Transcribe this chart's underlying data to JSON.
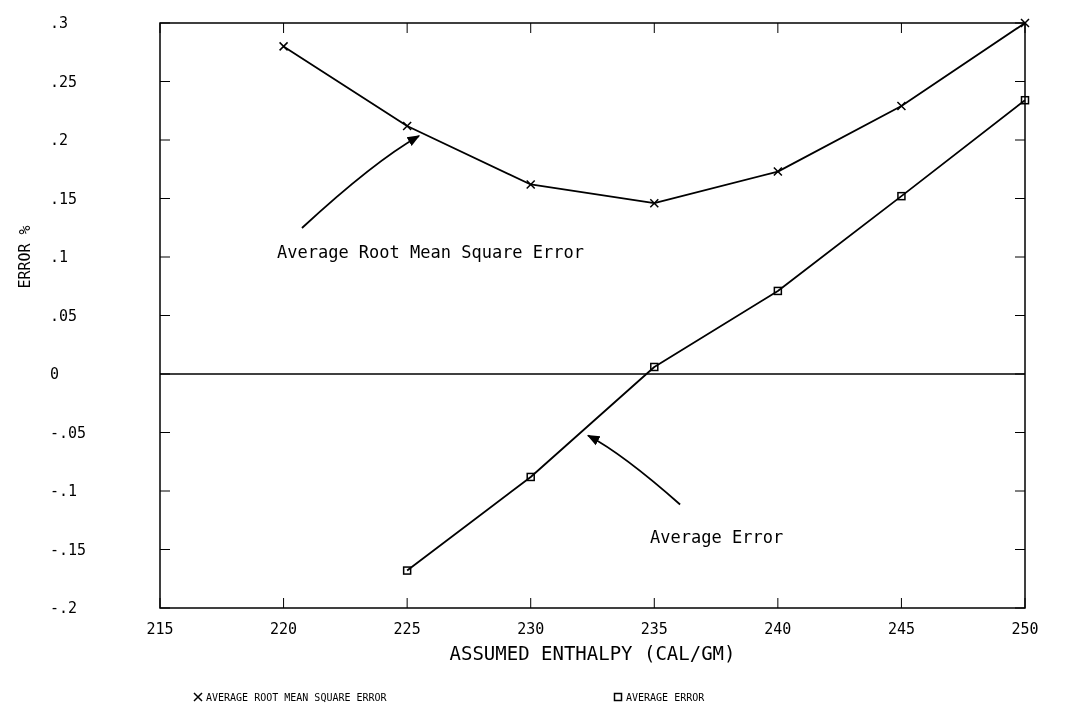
{
  "chart_data": {
    "type": "line",
    "xlabel": "ASSUMED ENTHALPY (CAL/GM)",
    "ylabel": "ERROR %",
    "x": [
      220,
      225,
      230,
      235,
      240,
      245,
      250
    ],
    "series": [
      {
        "name": "AVERAGE ROOT MEAN SQUARE ERROR",
        "color": "#000000",
        "marker": "cross",
        "values": [
          0.28,
          0.212,
          0.162,
          0.146,
          0.173,
          0.229,
          0.3
        ]
      },
      {
        "name": "AVERAGE ERROR",
        "color": "#000000",
        "marker": "square",
        "values": [
          null,
          -0.168,
          -0.088,
          0.006,
          0.071,
          0.152,
          0.234
        ]
      }
    ],
    "xlim": [
      215,
      250
    ],
    "xticks": [
      215,
      220,
      225,
      230,
      235,
      240,
      245,
      250
    ],
    "ylim": [
      -0.2,
      0.3
    ],
    "yticks": [
      {
        "value": -0.2,
        "label": "-.2"
      },
      {
        "value": -0.15,
        "label": "-.15"
      },
      {
        "value": -0.1,
        "label": "-.1"
      },
      {
        "value": -0.05,
        "label": "-.05"
      },
      {
        "value": 0,
        "label": "0"
      },
      {
        "value": 0.05,
        "label": ".05"
      },
      {
        "value": 0.1,
        "label": ".1"
      },
      {
        "value": 0.15,
        "label": ".15"
      },
      {
        "value": 0.2,
        "label": ".2"
      },
      {
        "value": 0.25,
        "label": ".25"
      },
      {
        "value": 0.3,
        "label": ".3"
      }
    ],
    "ref_lines": [
      {
        "axis": "y",
        "value": 0,
        "color": "#000000"
      }
    ],
    "annotations": [
      {
        "text": "Average Root Mean Square Error",
        "x": 225.6,
        "y": 0.206
      },
      {
        "text": "Average Error",
        "x": 232.2,
        "y": -0.05
      }
    ],
    "legend": "bottom",
    "line_style": "solid",
    "grid": false
  }
}
